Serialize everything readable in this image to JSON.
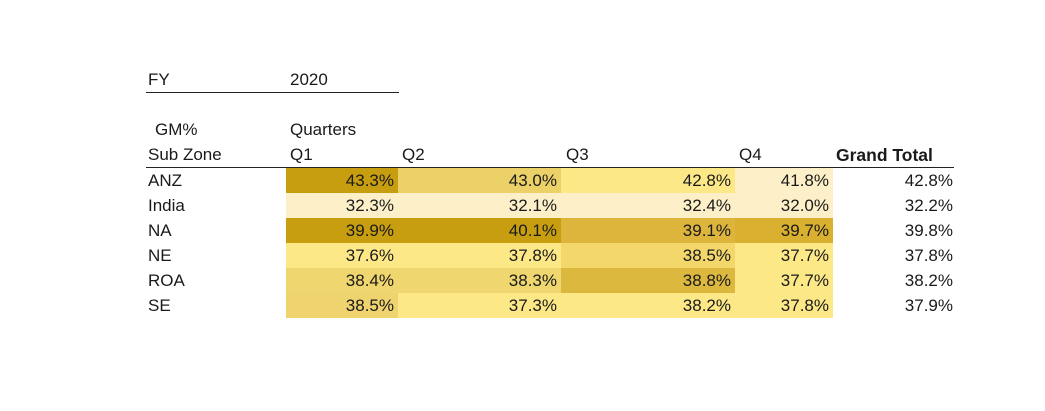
{
  "filter": {
    "label": "FY",
    "value": "2020"
  },
  "measure_label": "GM%",
  "row_header": "Sub Zone",
  "column_group": "Quarters",
  "columns": [
    "Q1",
    "Q2",
    "Q3",
    "Q4"
  ],
  "grand_total_label": "Grand Total",
  "rows": [
    {
      "name": "ANZ",
      "values": [
        "43.3%",
        "43.0%",
        "42.8%",
        "41.8%"
      ],
      "total": "42.8%"
    },
    {
      "name": "India",
      "values": [
        "32.3%",
        "32.1%",
        "32.4%",
        "32.0%"
      ],
      "total": "32.2%"
    },
    {
      "name": "NA",
      "values": [
        "39.9%",
        "40.1%",
        "39.1%",
        "39.7%"
      ],
      "total": "39.8%"
    },
    {
      "name": "NE",
      "values": [
        "37.6%",
        "37.8%",
        "38.5%",
        "37.7%"
      ],
      "total": "37.8%"
    },
    {
      "name": "ROA",
      "values": [
        "38.4%",
        "38.3%",
        "38.8%",
        "37.7%"
      ],
      "total": "38.2%"
    },
    {
      "name": "SE",
      "values": [
        "38.5%",
        "37.3%",
        "38.2%",
        "37.8%"
      ],
      "total": "37.9%"
    }
  ],
  "cell_colors": [
    [
      "#c79e10",
      "#ecd168",
      "#fde888",
      "#fdf0c8"
    ],
    [
      "#fdf0c8",
      "#fdf0c8",
      "#fdf0c8",
      "#fdf0c8"
    ],
    [
      "#c79e10",
      "#c79e10",
      "#ddb53c",
      "#d9b02f"
    ],
    [
      "#fde888",
      "#fde888",
      "#f3d76b",
      "#fde888"
    ],
    [
      "#f0d66e",
      "#f0d66e",
      "#ddb83f",
      "#fde888"
    ],
    [
      "#eed36f",
      "#fde888",
      "#fde888",
      "#fde888"
    ]
  ]
}
